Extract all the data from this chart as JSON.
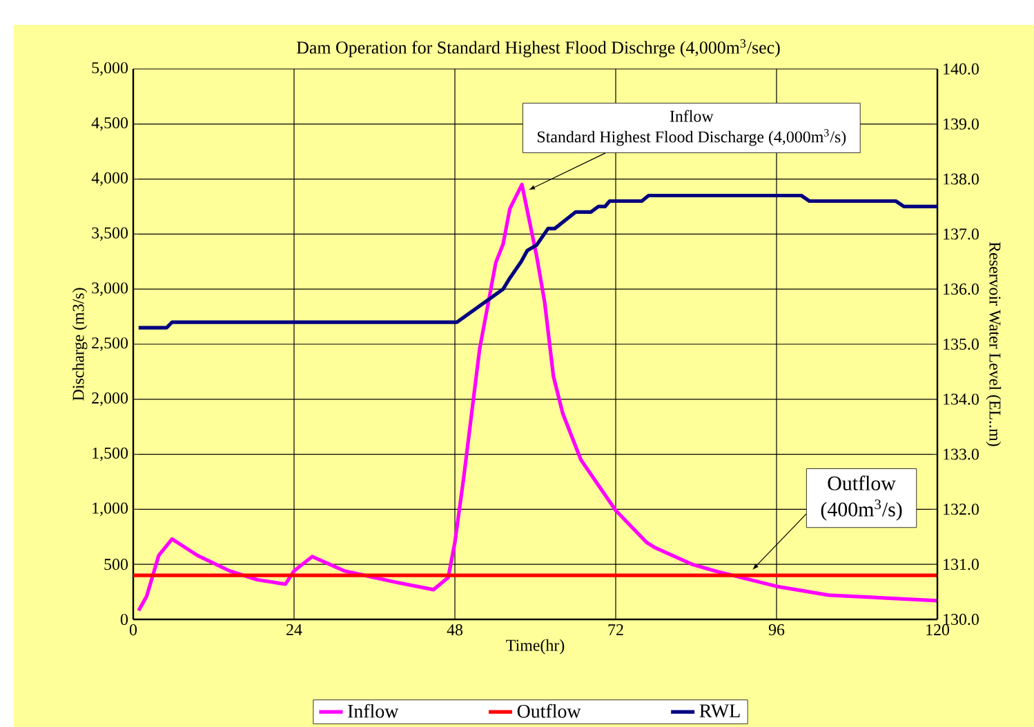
{
  "chart_data": {
    "type": "line",
    "title": "Dam Operation for Standard Highest Flood Dischrge (4,000m$^{3}$/sec)",
    "xlabel": "Time(hr)",
    "ylabel": "Discharge (m3/s)",
    "y2label": "Reservoir Water Level (EL..m)",
    "series": [
      {
        "name": "Inflow",
        "color": "#ff00ff",
        "x": [
          0.8,
          2,
          3.8,
          5.8,
          9.6,
          14.4,
          18.5,
          22.7,
          24,
          26.7,
          31.5,
          39,
          44.8,
          47,
          48,
          49.3,
          51.7,
          54.1,
          55.2,
          56.2,
          58,
          60.2,
          61.4,
          62.7,
          64.1,
          66.8,
          72,
          76.6,
          77.9,
          83.4,
          86.8,
          96,
          103.8,
          120
        ],
        "values": [
          80,
          210,
          580,
          730,
          580,
          440,
          360,
          320,
          440,
          570,
          440,
          340,
          270,
          380,
          700,
          1280,
          2460,
          3240,
          3410,
          3730,
          3950,
          3300,
          2880,
          2210,
          1870,
          1450,
          990,
          700,
          650,
          500,
          440,
          300,
          220,
          170
        ]
      },
      {
        "name": "Outflow",
        "color": "#ff0000",
        "x": [
          0,
          120
        ],
        "values": [
          400,
          400
        ]
      },
      {
        "name": "RWL",
        "color": "#000080",
        "axis": "y2",
        "x": [
          0.8,
          5,
          5.8,
          48.3,
          55.2,
          56.2,
          57.9,
          58.8,
          60.2,
          61.9,
          62.9,
          66,
          68.3,
          69.4,
          70.4,
          71.1,
          75.9,
          76.9,
          99.7,
          100.9,
          113.8,
          115,
          120
        ],
        "values": [
          135.3,
          135.3,
          135.4,
          135.4,
          136.0,
          136.2,
          136.5,
          136.7,
          136.8,
          137.1,
          137.1,
          137.4,
          137.4,
          137.5,
          137.5,
          137.6,
          137.6,
          137.7,
          137.7,
          137.6,
          137.6,
          137.5,
          137.5
        ]
      }
    ],
    "xlim": [
      0,
      120
    ],
    "xticks": [
      0,
      24,
      48,
      72,
      96,
      120
    ],
    "ylim": [
      0,
      5000
    ],
    "yticks": [
      0,
      {
        "value": 500,
        "label": "500"
      },
      {
        "value": 1000,
        "label": "1,000"
      },
      {
        "value": 1500,
        "label": "1,500"
      },
      {
        "value": 2000,
        "label": "2,000"
      },
      {
        "value": 2500,
        "label": "2,500"
      },
      {
        "value": 3000,
        "label": "3,000"
      },
      {
        "value": 3500,
        "label": "3,500"
      },
      {
        "value": 4000,
        "label": "4,000"
      },
      {
        "value": 4500,
        "label": "4,500"
      },
      {
        "value": 5000,
        "label": "5,000"
      }
    ],
    "y2lim": [
      130,
      140
    ],
    "y2ticks": [
      {
        "value": 130,
        "label": "130.0"
      },
      {
        "value": 131,
        "label": "131.0"
      },
      {
        "value": 132,
        "label": "132.0"
      },
      {
        "value": 133,
        "label": "133.0"
      },
      {
        "value": 134,
        "label": "134.0"
      },
      {
        "value": 135,
        "label": "135.0"
      },
      {
        "value": 136,
        "label": "136.0"
      },
      {
        "value": 137,
        "label": "137.0"
      },
      {
        "value": 138,
        "label": "138.0"
      },
      {
        "value": 139,
        "label": "139.0"
      },
      {
        "value": 140,
        "label": "140.0"
      }
    ],
    "annotations": [
      "Inflow",
      {
        "text": "Standard Highest Flood Discharge (4,000m$^{3}$/s)",
        "x": 59,
        "y": 3900
      },
      "Outflow",
      {
        "text": "(400m$^{3}$/s)",
        "x": 92.4,
        "y": 450
      }
    ],
    "grid": true,
    "legend": "bottom",
    "line_style": "solid",
    "marker": "none"
  }
}
